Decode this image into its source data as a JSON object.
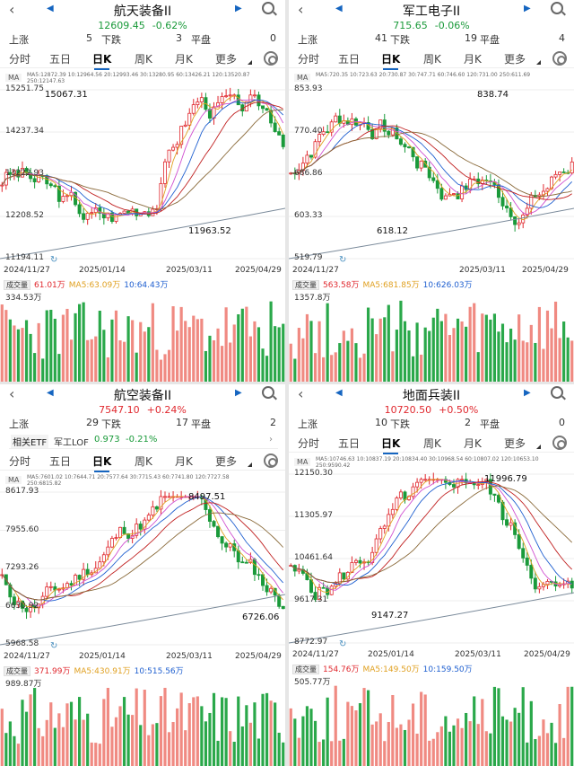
{
  "panels": [
    {
      "title": "航天装备II",
      "price": "12609.45",
      "change": "-0.62%",
      "trend": "dn",
      "rise_label": "上涨",
      "rise": "5",
      "fall_label": "下跌",
      "fall": "3",
      "flat_label": "平盘",
      "flat": "0",
      "tabs": [
        "分时",
        "五日",
        "日K",
        "周K",
        "月K",
        "更多"
      ],
      "active_tab": 2,
      "ma_line1": "MA5:12872.39 10:12964.56 20:12993.46 30:13280.95 60:13426.21 120:13520.87",
      "ma_line2": "250:12147.63",
      "y_labels": [
        "15251.75",
        "14237.34",
        "13222.93",
        "12208.52",
        "11194.11"
      ],
      "high_label": "15067.31",
      "low_label": "11963.52",
      "dates": [
        "2024/11/27",
        "2025/01/14",
        "2025/03/11",
        "2025/04/29"
      ],
      "vol_title": "成交量",
      "vol_value": "61.01万",
      "vol_ma5": "MA5:63.09万",
      "vol_ma10": "10:64.43万",
      "vol_axis": "334.53万",
      "seed": 3
    },
    {
      "title": "军工电子II",
      "price": "715.65",
      "change": "-0.06%",
      "trend": "dn",
      "rise_label": "上涨",
      "rise": "41",
      "fall_label": "下跌",
      "fall": "19",
      "flat_label": "平盘",
      "flat": "4",
      "tabs": [
        "分时",
        "五日",
        "日K",
        "周K",
        "月K",
        "更多"
      ],
      "active_tab": 2,
      "ma_line1": "MA5:720.35 10:723.63 20:730.87 30:747.71 60:746.60 120:731.00 250:611.69",
      "ma_line2": "",
      "y_labels": [
        "853.93",
        "770.40",
        "686.86",
        "603.33",
        "519.79"
      ],
      "high_label": "838.74",
      "low_label": "618.12",
      "dates": [
        "2024/11/27",
        "2025/03/11",
        "2025/04/29"
      ],
      "vol_title": "成交量",
      "vol_value": "563.58万",
      "vol_ma5": "MA5:681.85万",
      "vol_ma10": "10:626.03万",
      "vol_axis": "1357.8万",
      "seed": 7
    },
    {
      "title": "航空装备II",
      "price": "7547.10",
      "change": "+0.24%",
      "trend": "up",
      "rise_label": "上涨",
      "rise": "29",
      "fall_label": "下跌",
      "fall": "17",
      "flat_label": "平盘",
      "flat": "2",
      "etf_label": "相关ETF",
      "etf_name": "军工LOF",
      "etf_price": "0.973",
      "etf_change": "-0.21%",
      "tabs": [
        "分时",
        "五日",
        "日K",
        "周K",
        "月K",
        "更多"
      ],
      "active_tab": 2,
      "ma_line1": "MA5:7601.02 10:7644.71 20:7577.64 30:7715.43 60:7741.80 120:7727.58",
      "ma_line2": "250:6815.82",
      "y_labels": [
        "8617.93",
        "7955.60",
        "7293.26",
        "6630.92",
        "5968.58"
      ],
      "high_label": "8497.51",
      "low_label": "6726.06",
      "dates": [
        "2024/11/27",
        "2025/01/14",
        "2025/03/11",
        "2025/04/29"
      ],
      "vol_title": "成交量",
      "vol_value": "371.99万",
      "vol_ma5": "MA5:430.91万",
      "vol_ma10": "10:515.56万",
      "vol_axis": "989.87万",
      "seed": 11
    },
    {
      "title": "地面兵装II",
      "price": "10720.50",
      "change": "+0.50%",
      "trend": "up",
      "rise_label": "上涨",
      "rise": "10",
      "fall_label": "下跌",
      "fall": "2",
      "flat_label": "平盘",
      "flat": "0",
      "tabs": [
        "分时",
        "五日",
        "日K",
        "周K",
        "月K",
        "更多"
      ],
      "active_tab": 2,
      "ma_line1": "MA5:10746.63 10:10837.19 20:10834.40 30:10968.54 60:10807.02 120:10653.10",
      "ma_line2": "250:9590.42",
      "y_labels": [
        "12150.30",
        "11305.97",
        "10461.64",
        "9617.31",
        "8772.97"
      ],
      "high_label": "11996.79",
      "low_label": "9147.27",
      "dates": [
        "2024/11/27",
        "2025/01/14",
        "2025/03/11",
        "2025/04/29"
      ],
      "vol_title": "成交量",
      "vol_value": "154.76万",
      "vol_ma5": "MA5:149.50万",
      "vol_ma10": "10:159.50万",
      "vol_axis": "505.77万",
      "seed": 5
    }
  ],
  "colors": {
    "up": "#e0282e",
    "down": "#1a9a3a",
    "up_bar": "#f08a82",
    "down_bar": "#2aa84a",
    "accent": "#1565c0"
  }
}
